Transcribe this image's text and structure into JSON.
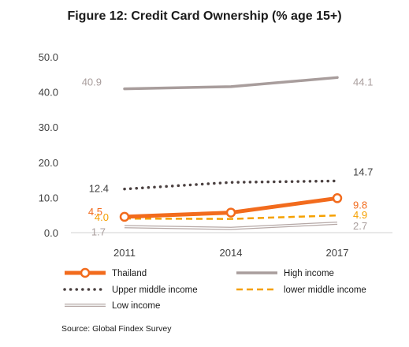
{
  "chart_data": {
    "type": "line",
    "title": "Figure 12: Credit Card Ownership (% age 15+)",
    "categories": [
      "2011",
      "2014",
      "2017"
    ],
    "ylim": [
      0,
      50
    ],
    "yticks": [
      "0.0",
      "10.0",
      "20.0",
      "30.0",
      "40.0",
      "50.0"
    ],
    "grid": false,
    "legend_position": "bottom",
    "series": [
      {
        "name": "Thailand",
        "values": [
          4.5,
          5.7,
          9.8
        ],
        "labels": [
          "4.5",
          "",
          "9.8"
        ],
        "color": "#f26b1d",
        "style": "thick-marker"
      },
      {
        "name": "High income",
        "values": [
          40.9,
          41.5,
          44.1
        ],
        "labels": [
          "40.9",
          "",
          "44.1"
        ],
        "color": "#a89d9c",
        "style": "solid"
      },
      {
        "name": "Upper middle income",
        "values": [
          12.4,
          14.3,
          14.7
        ],
        "labels": [
          "12.4",
          "",
          "14.7"
        ],
        "color": "#4a4040",
        "style": "dotted"
      },
      {
        "name": "lower middle income",
        "values": [
          4.0,
          3.9,
          4.9
        ],
        "labels": [
          "4.0",
          "",
          "4.9"
        ],
        "color": "#f5a000",
        "style": "dashed"
      },
      {
        "name": "Low income",
        "values": [
          1.7,
          1.2,
          2.7
        ],
        "labels": [
          "1.7",
          "",
          "2.7"
        ],
        "color": "#b5a8a6",
        "style": "double"
      }
    ]
  },
  "source": "Source: Global Findex Survey"
}
